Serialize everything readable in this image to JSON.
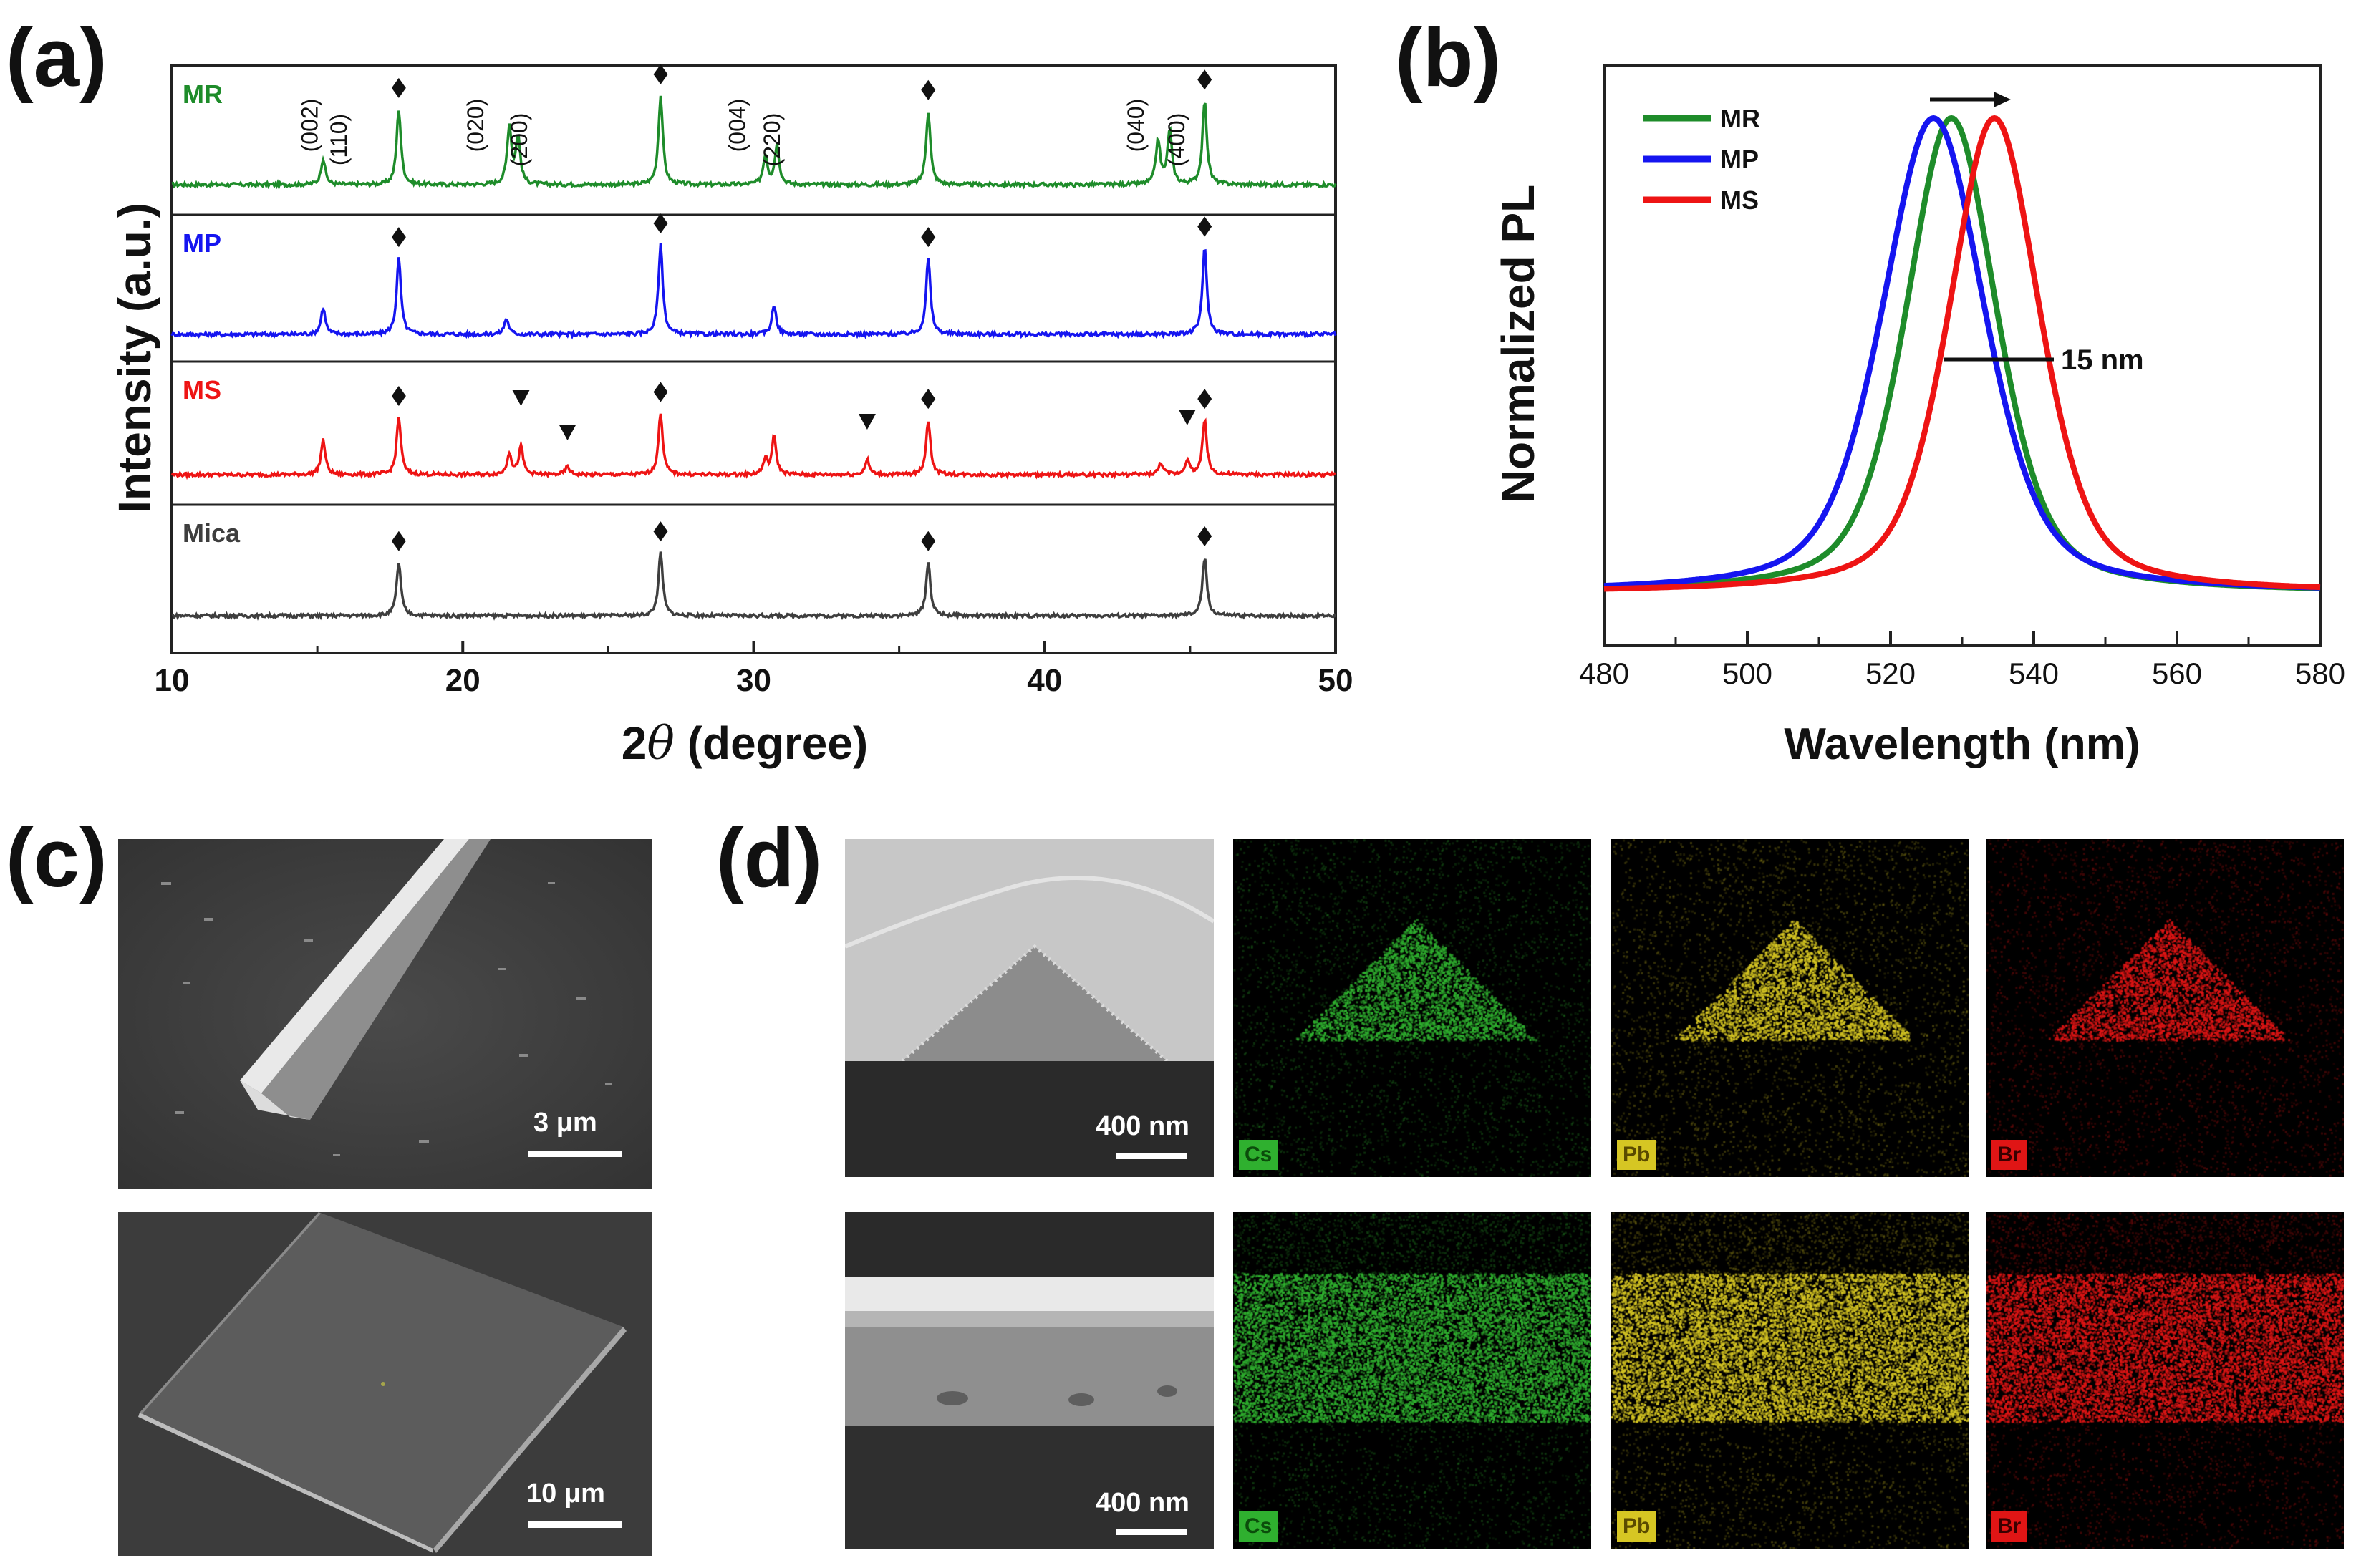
{
  "panel_labels": {
    "a": "(a)",
    "b": "(b)",
    "c": "(c)",
    "d": "(d)"
  },
  "chart_data": [
    {
      "type": "line",
      "panel": "(a)",
      "title": "",
      "xlabel_prefix": "2",
      "xlabel_symbol": "θ",
      "xlabel_suffix": " (degree)",
      "ylabel": "Intensity (a.u.)",
      "xlim": [
        10,
        50
      ],
      "xticks": [
        10,
        20,
        30,
        40,
        50
      ],
      "stacked": true,
      "series": [
        {
          "name": "MR",
          "color": "#1e8c2a",
          "peaks": [
            {
              "x": 15.2,
              "h": 0.25
            },
            {
              "x": 17.8,
              "h": 0.72
            },
            {
              "x": 21.6,
              "h": 0.55
            },
            {
              "x": 21.9,
              "h": 0.45
            },
            {
              "x": 26.8,
              "h": 0.85
            },
            {
              "x": 30.4,
              "h": 0.28
            },
            {
              "x": 30.8,
              "h": 0.38
            },
            {
              "x": 36.0,
              "h": 0.7
            },
            {
              "x": 43.9,
              "h": 0.42
            },
            {
              "x": 44.3,
              "h": 0.52
            },
            {
              "x": 45.5,
              "h": 0.8
            }
          ]
        },
        {
          "name": "MP",
          "color": "#1515f0",
          "peaks": [
            {
              "x": 15.2,
              "h": 0.25
            },
            {
              "x": 17.8,
              "h": 0.72
            },
            {
              "x": 21.5,
              "h": 0.15
            },
            {
              "x": 26.8,
              "h": 0.85
            },
            {
              "x": 30.7,
              "h": 0.28
            },
            {
              "x": 36.0,
              "h": 0.72
            },
            {
              "x": 45.5,
              "h": 0.82
            }
          ]
        },
        {
          "name": "MS",
          "color": "#ee1414",
          "peaks": [
            {
              "x": 15.2,
              "h": 0.35
            },
            {
              "x": 17.8,
              "h": 0.58
            },
            {
              "x": 21.6,
              "h": 0.22
            },
            {
              "x": 22.0,
              "h": 0.28
            },
            {
              "x": 23.6,
              "h": 0.08
            },
            {
              "x": 26.8,
              "h": 0.62
            },
            {
              "x": 30.4,
              "h": 0.15
            },
            {
              "x": 30.7,
              "h": 0.38
            },
            {
              "x": 33.9,
              "h": 0.15
            },
            {
              "x": 36.0,
              "h": 0.55
            },
            {
              "x": 44.0,
              "h": 0.12
            },
            {
              "x": 44.9,
              "h": 0.15
            },
            {
              "x": 45.5,
              "h": 0.55
            }
          ]
        },
        {
          "name": "Mica",
          "color": "#3e3e3e",
          "peaks": [
            {
              "x": 17.8,
              "h": 0.55
            },
            {
              "x": 26.8,
              "h": 0.65
            },
            {
              "x": 36.0,
              "h": 0.55
            },
            {
              "x": 45.5,
              "h": 0.6
            }
          ]
        }
      ],
      "diamond_positions": [
        17.8,
        26.8,
        36.0,
        45.5
      ],
      "triangle_positions": [
        22.0,
        23.6,
        33.9,
        44.9
      ],
      "miller_indices": [
        {
          "label": "(002)",
          "x": 15.2
        },
        {
          "label": "(110)",
          "x": 16.2
        },
        {
          "label": "(020)",
          "x": 20.9
        },
        {
          "label": "(200)",
          "x": 22.4
        },
        {
          "label": "(004)",
          "x": 29.9
        },
        {
          "label": "(220)",
          "x": 31.1
        },
        {
          "label": "(040)",
          "x": 43.6
        },
        {
          "label": "(400)",
          "x": 45.0
        }
      ]
    },
    {
      "type": "line",
      "panel": "(b)",
      "title": "",
      "xlabel": "Wavelength (nm)",
      "ylabel": "Normalized PL",
      "xlim": [
        480,
        580
      ],
      "xticks": [
        480,
        500,
        520,
        540,
        560,
        580
      ],
      "series": [
        {
          "name": "MR",
          "color": "#1e8c2a",
          "peak": 528.5,
          "fwhm": 15
        },
        {
          "name": "MP",
          "color": "#1515f0",
          "peak": 526,
          "fwhm": 17
        },
        {
          "name": "MS",
          "color": "#ee1414",
          "peak": 534.5,
          "fwhm": 15
        }
      ],
      "annotation": "15 nm",
      "legend": "top-left"
    }
  ],
  "sem": {
    "top_scale": "3 μm",
    "bottom_scale": "10 μm"
  },
  "eds": {
    "tem_scale_top": "400 nm",
    "tem_scale_bottom": "400 nm",
    "elements": [
      {
        "symbol": "Cs",
        "color": "#2fb02f"
      },
      {
        "symbol": "Pb",
        "color": "#d6c623"
      },
      {
        "symbol": "Br",
        "color": "#e01515"
      }
    ]
  }
}
